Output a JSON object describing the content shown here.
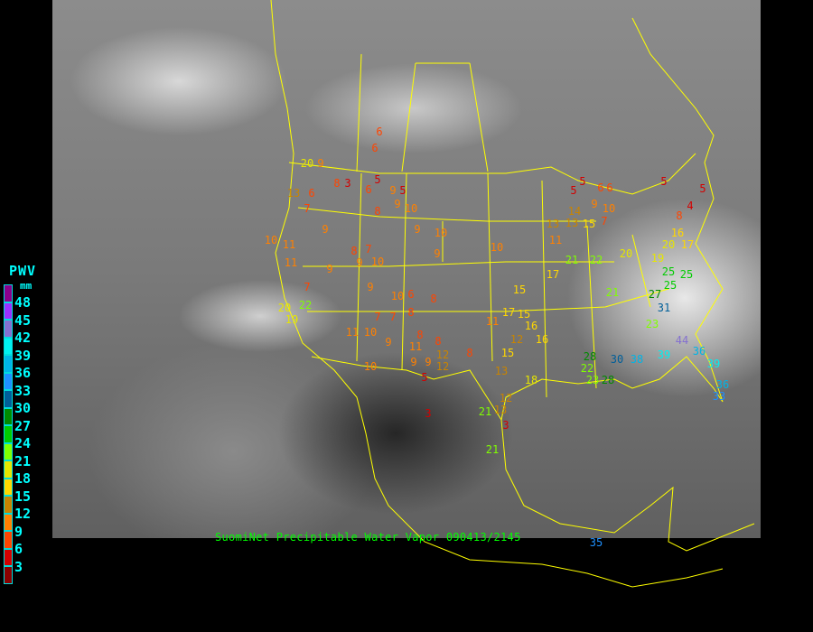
{
  "caption": "SuomiNet Precipitable Water Vapor 090413/2145",
  "legend": {
    "title": "PWV",
    "unit": "mm",
    "ticks": [
      "48",
      "45",
      "42",
      "39",
      "36",
      "33",
      "30",
      "27",
      "24",
      "21",
      "18",
      "15",
      "12",
      "9",
      "6",
      "3"
    ],
    "colors": [
      "#8b008b",
      "#9b30ff",
      "#8470d0",
      "#00f0f0",
      "#00b4e6",
      "#1e90ff",
      "#005f99",
      "#008a00",
      "#00cc00",
      "#80ff00",
      "#e6e600",
      "#ffd700",
      "#c88400",
      "#ff8000",
      "#ff4500",
      "#d40000",
      "#8b0000"
    ]
  },
  "border_color": "#ffff00",
  "stations": [
    6,
    20,
    9,
    13,
    6,
    8,
    3,
    5,
    6,
    9,
    8,
    10,
    9,
    7,
    10,
    11,
    9,
    11,
    9,
    7,
    9,
    8,
    10,
    10,
    9,
    7,
    10,
    9,
    8,
    6,
    20,
    22,
    19,
    11,
    10,
    7,
    9,
    11,
    10,
    7,
    8,
    8,
    9,
    8,
    12,
    9,
    5,
    3,
    8,
    11,
    13,
    15,
    17,
    15,
    12,
    16,
    12,
    13,
    3,
    21,
    10,
    5,
    5,
    6,
    9,
    10,
    13,
    11,
    14,
    13,
    15,
    17,
    21,
    22,
    21,
    20,
    19,
    25,
    25,
    25,
    27,
    31,
    23,
    44,
    39,
    36,
    39,
    36,
    33,
    28,
    30,
    38,
    22,
    28,
    23,
    6,
    5,
    4,
    8,
    5,
    16,
    17,
    20,
    6,
    7,
    21,
    35,
    5,
    9,
    12,
    15,
    16,
    18
  ]
}
